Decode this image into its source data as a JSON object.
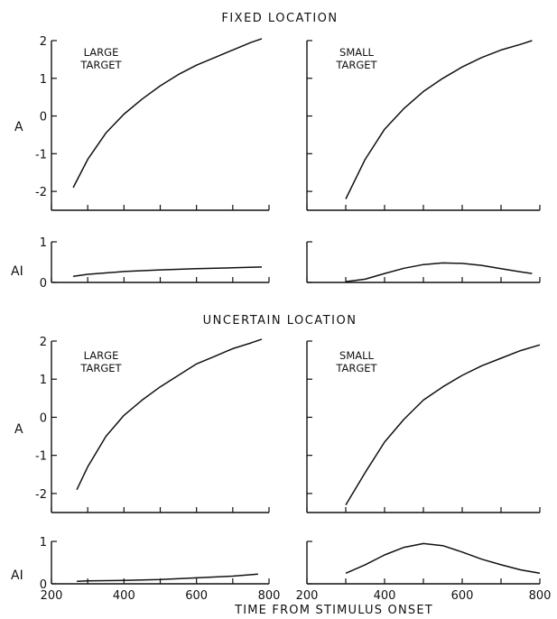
{
  "figure": {
    "x_title": "TIME FROM STIMULUS ONSET",
    "a_axis_label": "A",
    "ai_axis_label": "AI"
  },
  "chart_data": [
    {
      "section": "FIXED LOCATION",
      "panel": "LARGE TARGET",
      "type": "line",
      "xlim": [
        200,
        800
      ],
      "x_ticks": [],
      "A": {
        "ylim": [
          -2.5,
          2
        ],
        "y_ticks": [
          "2",
          "1",
          "0",
          "-1",
          "-2"
        ],
        "x": [
          260,
          300,
          350,
          400,
          450,
          500,
          550,
          600,
          650,
          700,
          750,
          780
        ],
        "y": [
          -1.9,
          -1.15,
          -0.45,
          0.05,
          0.45,
          0.8,
          1.1,
          1.35,
          1.55,
          1.75,
          1.95,
          2.05
        ]
      },
      "AI": {
        "ylim": [
          0,
          1
        ],
        "y_ticks": [
          "1",
          "0"
        ],
        "x": [
          260,
          300,
          400,
          500,
          600,
          700,
          780
        ],
        "y": [
          0.15,
          0.2,
          0.27,
          0.31,
          0.34,
          0.36,
          0.38
        ]
      }
    },
    {
      "section": "FIXED LOCATION",
      "panel": "SMALL TARGET",
      "type": "line",
      "xlim": [
        200,
        800
      ],
      "x_ticks": [],
      "A": {
        "ylim": [
          -2.5,
          2
        ],
        "y_ticks": [],
        "x": [
          300,
          350,
          400,
          450,
          500,
          550,
          600,
          650,
          700,
          750,
          780
        ],
        "y": [
          -2.2,
          -1.15,
          -0.35,
          0.2,
          0.65,
          1.0,
          1.3,
          1.55,
          1.75,
          1.9,
          2.0
        ]
      },
      "AI": {
        "ylim": [
          0,
          1
        ],
        "y_ticks": [],
        "x": [
          300,
          350,
          400,
          450,
          500,
          550,
          600,
          650,
          700,
          750,
          780
        ],
        "y": [
          0.02,
          0.08,
          0.22,
          0.35,
          0.44,
          0.48,
          0.47,
          0.42,
          0.34,
          0.26,
          0.22
        ]
      }
    },
    {
      "section": "UNCERTAIN LOCATION",
      "panel": "LARGE TARGET",
      "type": "line",
      "xlim": [
        200,
        800
      ],
      "x_ticks": [
        "200",
        "400",
        "600",
        "800"
      ],
      "A": {
        "ylim": [
          -2.5,
          2
        ],
        "y_ticks": [
          "2",
          "1",
          "0",
          "-1",
          "-2"
        ],
        "x": [
          270,
          300,
          350,
          400,
          450,
          500,
          550,
          600,
          650,
          700,
          750,
          780
        ],
        "y": [
          -1.9,
          -1.3,
          -0.5,
          0.05,
          0.45,
          0.8,
          1.1,
          1.4,
          1.6,
          1.8,
          1.95,
          2.05
        ]
      },
      "AI": {
        "ylim": [
          0,
          1
        ],
        "y_ticks": [
          "1",
          "0"
        ],
        "x": [
          270,
          300,
          400,
          500,
          600,
          700,
          770
        ],
        "y": [
          0.06,
          0.07,
          0.08,
          0.1,
          0.14,
          0.18,
          0.23
        ]
      }
    },
    {
      "section": "UNCERTAIN LOCATION",
      "panel": "SMALL TARGET",
      "type": "line",
      "xlim": [
        200,
        800
      ],
      "x_ticks": [
        "200",
        "400",
        "600",
        "800"
      ],
      "A": {
        "ylim": [
          -2.5,
          2
        ],
        "y_ticks": [],
        "x": [
          300,
          350,
          400,
          450,
          500,
          550,
          600,
          650,
          700,
          750,
          800
        ],
        "y": [
          -2.3,
          -1.45,
          -0.65,
          -0.05,
          0.45,
          0.8,
          1.1,
          1.35,
          1.55,
          1.75,
          1.9
        ]
      },
      "AI": {
        "ylim": [
          0,
          1
        ],
        "y_ticks": [],
        "x": [
          300,
          350,
          400,
          450,
          500,
          550,
          600,
          650,
          700,
          750,
          800
        ],
        "y": [
          0.25,
          0.45,
          0.68,
          0.86,
          0.95,
          0.9,
          0.75,
          0.58,
          0.45,
          0.33,
          0.25
        ]
      }
    }
  ]
}
